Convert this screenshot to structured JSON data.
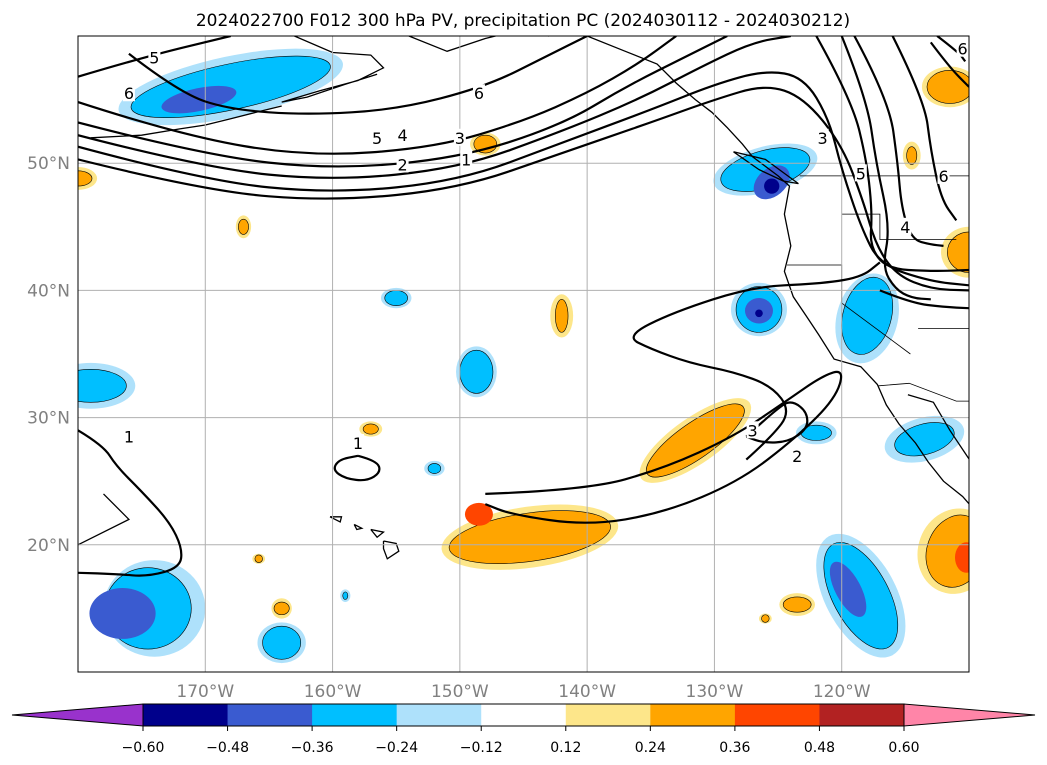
{
  "chart_data": {
    "type": "contour",
    "title": "2024022700 F012 300 hPa PV, precipitation PC (2024030112 - 2024030212)",
    "map": {
      "lon_range": [
        -180,
        -110
      ],
      "lat_range": [
        10,
        60
      ],
      "lon_ticks": [
        -170,
        -160,
        -150,
        -140,
        -130,
        -120
      ],
      "lon_tick_labels": [
        "170°W",
        "160°W",
        "150°W",
        "140°W",
        "130°W",
        "120°W"
      ],
      "lat_ticks": [
        20,
        30,
        40,
        50
      ],
      "lat_tick_labels": [
        "20°N",
        "30°N",
        "40°N",
        "50°N"
      ],
      "grid": true
    },
    "colorbar": {
      "levels": [
        -0.6,
        -0.48,
        -0.36,
        -0.24,
        -0.12,
        0.12,
        0.24,
        0.36,
        0.48,
        0.6
      ],
      "tick_labels": [
        "−0.60",
        "−0.48",
        "−0.36",
        "−0.24",
        "−0.12",
        "0.12",
        "0.24",
        "0.36",
        "0.48",
        "0.60"
      ],
      "colors": [
        "#9932cc",
        "#00008b",
        "#3a5bd0",
        "#00bfff",
        "#aee1fb",
        "#ffffff",
        "#fde68a",
        "#ffa500",
        "#ff4500",
        "#b22222",
        "#ff85a8"
      ],
      "extend": "both"
    },
    "pv_contour_labels": [
      {
        "text": "5",
        "lon": -174,
        "lat": 58.3
      },
      {
        "text": "6",
        "lon": -176,
        "lat": 55.5
      },
      {
        "text": "6",
        "lon": -148.5,
        "lat": 55.5
      },
      {
        "text": "5",
        "lon": -156.5,
        "lat": 52
      },
      {
        "text": "4",
        "lon": -154.5,
        "lat": 52.2
      },
      {
        "text": "3",
        "lon": -150,
        "lat": 52
      },
      {
        "text": "2",
        "lon": -154.5,
        "lat": 49.9
      },
      {
        "text": "1",
        "lon": -149.5,
        "lat": 50.3
      },
      {
        "text": "3",
        "lon": -121.5,
        "lat": 52
      },
      {
        "text": "5",
        "lon": -118.5,
        "lat": 49.2
      },
      {
        "text": "6",
        "lon": -112,
        "lat": 49
      },
      {
        "text": "6",
        "lon": -110.5,
        "lat": 59
      },
      {
        "text": "4",
        "lon": -115,
        "lat": 45
      },
      {
        "text": "1",
        "lon": -176,
        "lat": 28.5
      },
      {
        "text": "1",
        "lon": -158,
        "lat": 28
      },
      {
        "text": "3",
        "lon": -127,
        "lat": 29
      },
      {
        "text": "2",
        "lon": -123.5,
        "lat": 27
      }
    ]
  }
}
